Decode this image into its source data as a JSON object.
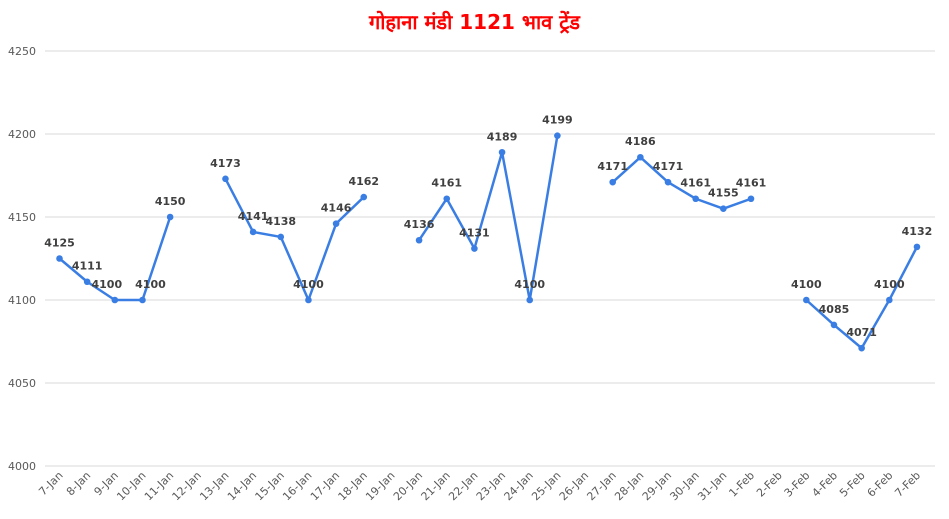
{
  "chart_data": {
    "type": "line",
    "title": "गोहाना मंडी 1121 भाव ट्रेंड",
    "xlabel": "",
    "ylabel": "",
    "ylim": [
      4000,
      4250
    ],
    "yticks": [
      4000,
      4050,
      4100,
      4150,
      4200,
      4250
    ],
    "grid": true,
    "color": "#3a7ee4",
    "title_color": "#ff0000",
    "categories": [
      "7-Jan",
      "8-Jan",
      "9-Jan",
      "10-Jan",
      "11-Jan",
      "12-Jan",
      "13-Jan",
      "14-Jan",
      "15-Jan",
      "16-Jan",
      "17-Jan",
      "18-Jan",
      "19-Jan",
      "20-Jan",
      "21-Jan",
      "22-Jan",
      "23-Jan",
      "24-Jan",
      "25-Jan",
      "26-Jan",
      "27-Jan",
      "28-Jan",
      "29-Jan",
      "30-Jan",
      "31-Jan",
      "1-Feb",
      "2-Feb",
      "3-Feb",
      "4-Feb",
      "5-Feb",
      "6-Feb",
      "7-Feb"
    ],
    "values": [
      4125,
      4111,
      4100,
      4100,
      4150,
      null,
      4173,
      4141,
      4138,
      4100,
      4146,
      4162,
      null,
      4136,
      4161,
      4131,
      4189,
      4100,
      4199,
      null,
      4171,
      4186,
      4171,
      4161,
      4155,
      4161,
      null,
      4100,
      4085,
      4071,
      4100,
      4132
    ],
    "labels": [
      "4125",
      "4111",
      "4100",
      "4100",
      "4150",
      null,
      "4173",
      "4141",
      "4138",
      "4100",
      "4146",
      "4162",
      null,
      "4136",
      "4161",
      "4131",
      "4189",
      "4100",
      "4199",
      null,
      "4171",
      "4186",
      "4171",
      "4161",
      "4155",
      "4161",
      null,
      "4100",
      "4085",
      "4071",
      "4100",
      "4132"
    ]
  }
}
